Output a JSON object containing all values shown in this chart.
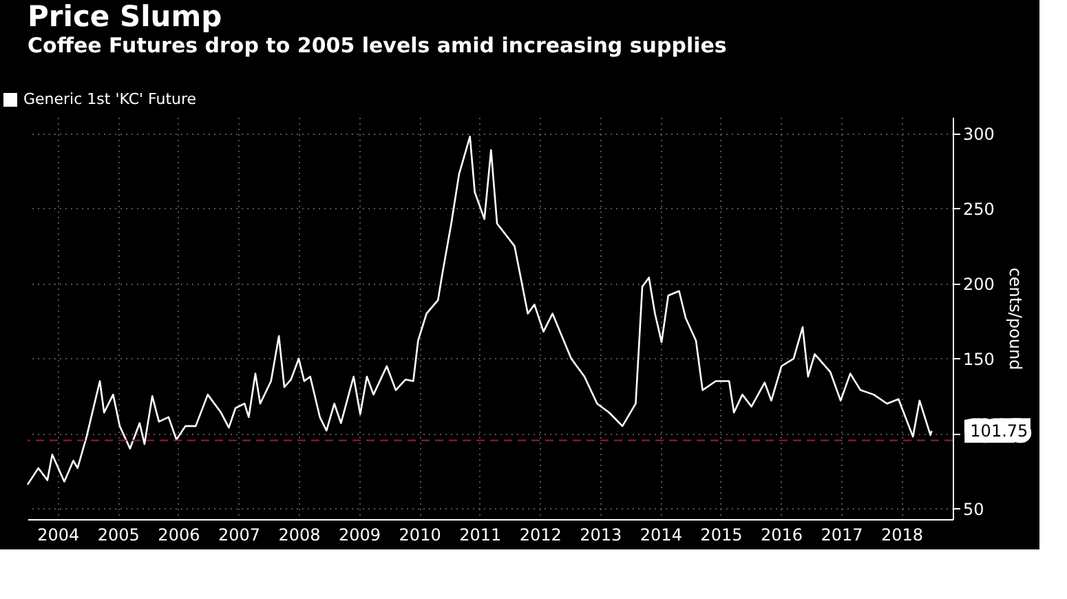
{
  "chart_data": {
    "type": "line",
    "title": "Price Slump",
    "subtitle": "Coffee Futures drop to 2005 levels amid increasing supplies",
    "ylabel": "cents/pound",
    "x": [
      2004.0,
      2004.18,
      2004.33,
      2004.41,
      2004.61,
      2004.76,
      2004.83,
      2004.98,
      2005.2,
      2005.27,
      2005.42,
      2005.53,
      2005.7,
      2005.86,
      2005.94,
      2006.07,
      2006.18,
      2006.34,
      2006.47,
      2006.62,
      2006.79,
      2006.99,
      2007.21,
      2007.34,
      2007.45,
      2007.6,
      2007.67,
      2007.78,
      2007.86,
      2008.04,
      2008.17,
      2008.26,
      2008.37,
      2008.5,
      2008.59,
      2008.69,
      2008.85,
      2008.96,
      2009.09,
      2009.2,
      2009.41,
      2009.52,
      2009.63,
      2009.74,
      2009.96,
      2010.11,
      2010.27,
      2010.4,
      2010.48,
      2010.62,
      2010.81,
      2010.88,
      2011.03,
      2011.16,
      2011.34,
      2011.42,
      2011.58,
      2011.69,
      2011.79,
      2012.08,
      2012.3,
      2012.41,
      2012.56,
      2012.71,
      2013.02,
      2013.24,
      2013.45,
      2013.65,
      2013.87,
      2014.09,
      2014.2,
      2014.31,
      2014.41,
      2014.52,
      2014.63,
      2014.81,
      2014.92,
      2015.09,
      2015.2,
      2015.42,
      2015.64,
      2015.72,
      2015.86,
      2016.01,
      2016.23,
      2016.34,
      2016.51,
      2016.71,
      2016.86,
      2016.95,
      2017.06,
      2017.32,
      2017.49,
      2017.65,
      2017.82,
      2018.04,
      2018.26,
      2018.45,
      2018.69,
      2018.8,
      2018.98,
      2019.0
    ],
    "series": [
      {
        "name": "Generic 1st 'KC' Future",
        "color": "#ffffff",
        "values": [
          66,
          77,
          69,
          86,
          68,
          82,
          77,
          98,
          135,
          114,
          126,
          105,
          90,
          107,
          93,
          125,
          108,
          111,
          96,
          105,
          105,
          126,
          114,
          104,
          117,
          120,
          111,
          140,
          120,
          135,
          165,
          131,
          136,
          150,
          135,
          138,
          111,
          102,
          120,
          107,
          138,
          113,
          138,
          126,
          145,
          129,
          136,
          135,
          162,
          180,
          189,
          206,
          240,
          273,
          298,
          261,
          243,
          289,
          240,
          225,
          180,
          186,
          168,
          180,
          150,
          138,
          120,
          114,
          105,
          120,
          198,
          204,
          180,
          161,
          192,
          195,
          177,
          162,
          129,
          135,
          135,
          114,
          126,
          118,
          134,
          122,
          145,
          150,
          171,
          138,
          153,
          141,
          122,
          140,
          129,
          126,
          120,
          123,
          98,
          122,
          99,
          101.75
        ]
      }
    ],
    "xlim": [
      2004.0,
      2019.35
    ],
    "xticks": [
      {
        "value": 2004.5,
        "label": "2004"
      },
      {
        "value": 2005.5,
        "label": "2005"
      },
      {
        "value": 2006.5,
        "label": "2006"
      },
      {
        "value": 2007.5,
        "label": "2007"
      },
      {
        "value": 2008.5,
        "label": "2008"
      },
      {
        "value": 2009.5,
        "label": "2009"
      },
      {
        "value": 2010.5,
        "label": "2010"
      },
      {
        "value": 2011.5,
        "label": "2011"
      },
      {
        "value": 2012.5,
        "label": "2012"
      },
      {
        "value": 2013.5,
        "label": "2013"
      },
      {
        "value": 2014.5,
        "label": "2014"
      },
      {
        "value": 2015.5,
        "label": "2015"
      },
      {
        "value": 2016.5,
        "label": "2016"
      },
      {
        "value": 2017.5,
        "label": "2017"
      },
      {
        "value": 2018.5,
        "label": "2018"
      }
    ],
    "ylim": [
      43,
      311
    ],
    "yticks": [
      50,
      {
        "value": 100,
        "label": null
      },
      150,
      200,
      250,
      300
    ],
    "annotations": [
      {
        "text": "101.75",
        "x": 2019.0,
        "y": 101.75
      }
    ],
    "ref_lines": [
      {
        "axis": "y",
        "value": 95.5,
        "color": "#8b1a2b",
        "line_style": "dashed"
      }
    ],
    "grid": true,
    "legend": "top left",
    "marker": "none",
    "line_style": "solid"
  }
}
